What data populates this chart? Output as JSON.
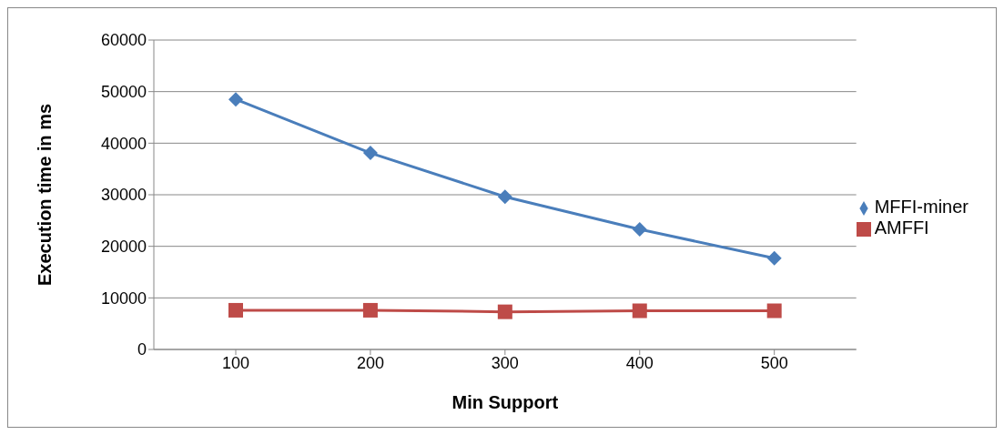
{
  "chart_data": {
    "type": "line",
    "xlabel": "Min Support",
    "ylabel": "Execution time in ms",
    "categories": [
      "100",
      "200",
      "300",
      "400",
      "500"
    ],
    "series": [
      {
        "name": "MFFI-miner",
        "color": "#4a7ebb",
        "marker": "diamond",
        "values": [
          48500,
          38100,
          29600,
          23300,
          17700
        ]
      },
      {
        "name": "AMFFI",
        "color": "#be4b48",
        "marker": "square",
        "values": [
          7600,
          7600,
          7300,
          7500,
          7500
        ]
      }
    ],
    "ylim": [
      0,
      60000
    ],
    "yticks": [
      0,
      10000,
      20000,
      30000,
      40000,
      50000,
      60000
    ],
    "grid": "y",
    "legend": "right"
  }
}
